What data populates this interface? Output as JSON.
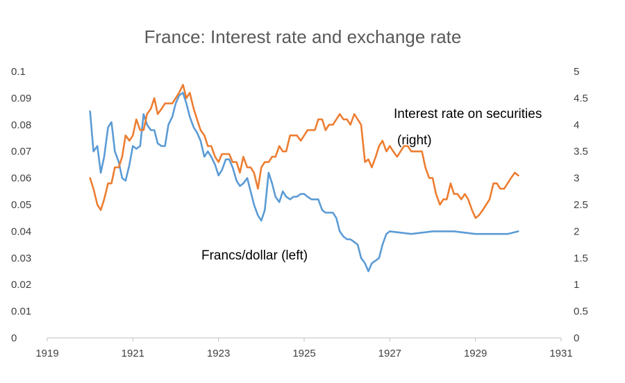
{
  "chart_data": {
    "type": "line",
    "title": "France: Interest rate and exchange rate",
    "xlabel": "",
    "ylabel": "",
    "y2label": "",
    "x_ticks": [
      "1919",
      "1921",
      "1923",
      "1925",
      "1927",
      "1929",
      "1931"
    ],
    "xlim": [
      1919,
      1931
    ],
    "y_left_ticks": [
      "0",
      "0.01",
      "0.02",
      "0.03",
      "0.04",
      "0.05",
      "0.06",
      "0.07",
      "0.08",
      "0.09",
      "0.1"
    ],
    "ylim_left": [
      0,
      0.1
    ],
    "y_right_ticks": [
      "0",
      "0.5",
      "1",
      "1.5",
      "2",
      "2.5",
      "3",
      "3.5",
      "4",
      "4.5",
      "5"
    ],
    "ylim_right": [
      0,
      5
    ],
    "grid": false,
    "legend": "none",
    "annotations": [
      {
        "series": "francs",
        "lines": [
          "Francs/dollar (left)"
        ]
      },
      {
        "series": "interest",
        "lines": [
          "Interest rate on securities",
          "(right)"
        ]
      }
    ],
    "series": [
      {
        "key": "francs",
        "axis": "left",
        "color": "#5b9bd5",
        "x": [
          1920.0,
          1920.08,
          1920.17,
          1920.25,
          1920.33,
          1920.42,
          1920.5,
          1920.58,
          1920.67,
          1920.75,
          1920.83,
          1920.92,
          1921.0,
          1921.08,
          1921.17,
          1921.25,
          1921.33,
          1921.42,
          1921.5,
          1921.58,
          1921.67,
          1921.75,
          1921.83,
          1921.92,
          1922.0,
          1922.08,
          1922.17,
          1922.25,
          1922.33,
          1922.42,
          1922.5,
          1922.58,
          1922.67,
          1922.75,
          1922.83,
          1922.92,
          1923.0,
          1923.08,
          1923.17,
          1923.25,
          1923.33,
          1923.42,
          1923.5,
          1923.58,
          1923.67,
          1923.75,
          1923.83,
          1923.92,
          1924.0,
          1924.08,
          1924.17,
          1924.25,
          1924.33,
          1924.42,
          1924.5,
          1924.58,
          1924.67,
          1924.75,
          1924.83,
          1924.92,
          1925.0,
          1925.08,
          1925.17,
          1925.25,
          1925.33,
          1925.42,
          1925.5,
          1925.58,
          1925.67,
          1925.75,
          1925.83,
          1925.92,
          1926.0,
          1926.08,
          1926.17,
          1926.25,
          1926.33,
          1926.42,
          1926.5,
          1926.58,
          1926.67,
          1926.75,
          1926.83,
          1926.92,
          1927.0,
          1927.5,
          1928.0,
          1928.5,
          1929.0,
          1929.5,
          1929.75,
          1930.0
        ],
        "values": [
          0.085,
          0.07,
          0.072,
          0.062,
          0.068,
          0.079,
          0.081,
          0.07,
          0.066,
          0.06,
          0.059,
          0.065,
          0.072,
          0.071,
          0.072,
          0.084,
          0.08,
          0.078,
          0.078,
          0.073,
          0.072,
          0.072,
          0.08,
          0.083,
          0.088,
          0.091,
          0.092,
          0.088,
          0.083,
          0.079,
          0.077,
          0.074,
          0.068,
          0.07,
          0.068,
          0.065,
          0.061,
          0.063,
          0.067,
          0.067,
          0.064,
          0.059,
          0.057,
          0.058,
          0.06,
          0.055,
          0.05,
          0.046,
          0.044,
          0.048,
          0.062,
          0.058,
          0.053,
          0.051,
          0.055,
          0.053,
          0.052,
          0.053,
          0.053,
          0.054,
          0.054,
          0.053,
          0.052,
          0.052,
          0.052,
          0.048,
          0.047,
          0.047,
          0.047,
          0.045,
          0.04,
          0.038,
          0.037,
          0.037,
          0.036,
          0.035,
          0.03,
          0.028,
          0.025,
          0.028,
          0.029,
          0.03,
          0.035,
          0.039,
          0.04,
          0.039,
          0.04,
          0.04,
          0.039,
          0.039,
          0.039,
          0.04
        ]
      },
      {
        "key": "interest",
        "axis": "right",
        "color": "#ed7d31",
        "x": [
          1920.0,
          1920.08,
          1920.17,
          1920.25,
          1920.33,
          1920.42,
          1920.5,
          1920.58,
          1920.67,
          1920.75,
          1920.83,
          1920.92,
          1921.0,
          1921.08,
          1921.17,
          1921.25,
          1921.33,
          1921.42,
          1921.5,
          1921.58,
          1921.67,
          1921.75,
          1921.83,
          1921.92,
          1922.0,
          1922.08,
          1922.17,
          1922.25,
          1922.33,
          1922.42,
          1922.5,
          1922.58,
          1922.67,
          1922.75,
          1922.83,
          1922.92,
          1923.0,
          1923.08,
          1923.17,
          1923.25,
          1923.33,
          1923.42,
          1923.5,
          1923.58,
          1923.67,
          1923.75,
          1923.83,
          1923.92,
          1924.0,
          1924.08,
          1924.17,
          1924.25,
          1924.33,
          1924.42,
          1924.5,
          1924.58,
          1924.67,
          1924.75,
          1924.83,
          1924.92,
          1925.0,
          1925.08,
          1925.17,
          1925.25,
          1925.33,
          1925.42,
          1925.5,
          1925.58,
          1925.67,
          1925.75,
          1925.83,
          1925.92,
          1926.0,
          1926.08,
          1926.17,
          1926.25,
          1926.33,
          1926.42,
          1926.5,
          1926.58,
          1926.67,
          1926.75,
          1926.83,
          1926.92,
          1927.0,
          1927.08,
          1927.17,
          1927.25,
          1927.33,
          1927.42,
          1927.5,
          1927.58,
          1927.67,
          1927.75,
          1927.83,
          1927.92,
          1928.0,
          1928.08,
          1928.17,
          1928.25,
          1928.33,
          1928.42,
          1928.5,
          1928.58,
          1928.67,
          1928.75,
          1928.83,
          1928.92,
          1929.0,
          1929.08,
          1929.17,
          1929.25,
          1929.33,
          1929.42,
          1929.5,
          1929.58,
          1929.67,
          1929.75,
          1929.83,
          1929.92,
          1930.0
        ],
        "values": [
          3.0,
          2.8,
          2.5,
          2.4,
          2.6,
          2.9,
          2.9,
          3.2,
          3.2,
          3.4,
          3.8,
          3.7,
          3.8,
          4.1,
          3.9,
          3.9,
          4.2,
          4.3,
          4.5,
          4.2,
          4.3,
          4.4,
          4.4,
          4.4,
          4.5,
          4.6,
          4.75,
          4.5,
          4.6,
          4.3,
          4.1,
          3.9,
          3.8,
          3.6,
          3.6,
          3.4,
          3.3,
          3.45,
          3.45,
          3.45,
          3.3,
          3.3,
          3.1,
          3.4,
          3.2,
          3.2,
          3.1,
          2.8,
          3.2,
          3.3,
          3.3,
          3.4,
          3.4,
          3.6,
          3.5,
          3.5,
          3.8,
          3.8,
          3.8,
          3.7,
          3.8,
          3.9,
          3.9,
          3.9,
          4.1,
          4.1,
          3.9,
          4.0,
          4.0,
          4.1,
          4.2,
          4.1,
          4.1,
          4.0,
          4.2,
          4.1,
          4.0,
          3.3,
          3.35,
          3.2,
          3.4,
          3.6,
          3.7,
          3.5,
          3.6,
          3.5,
          3.4,
          3.5,
          3.6,
          3.6,
          3.5,
          3.5,
          3.5,
          3.5,
          3.2,
          3.0,
          3.0,
          2.7,
          2.5,
          2.6,
          2.6,
          2.9,
          2.7,
          2.7,
          2.6,
          2.7,
          2.6,
          2.4,
          2.25,
          2.3,
          2.4,
          2.5,
          2.6,
          2.9,
          2.9,
          2.8,
          2.8,
          2.9,
          3.0,
          3.1,
          3.05
        ]
      }
    ]
  }
}
